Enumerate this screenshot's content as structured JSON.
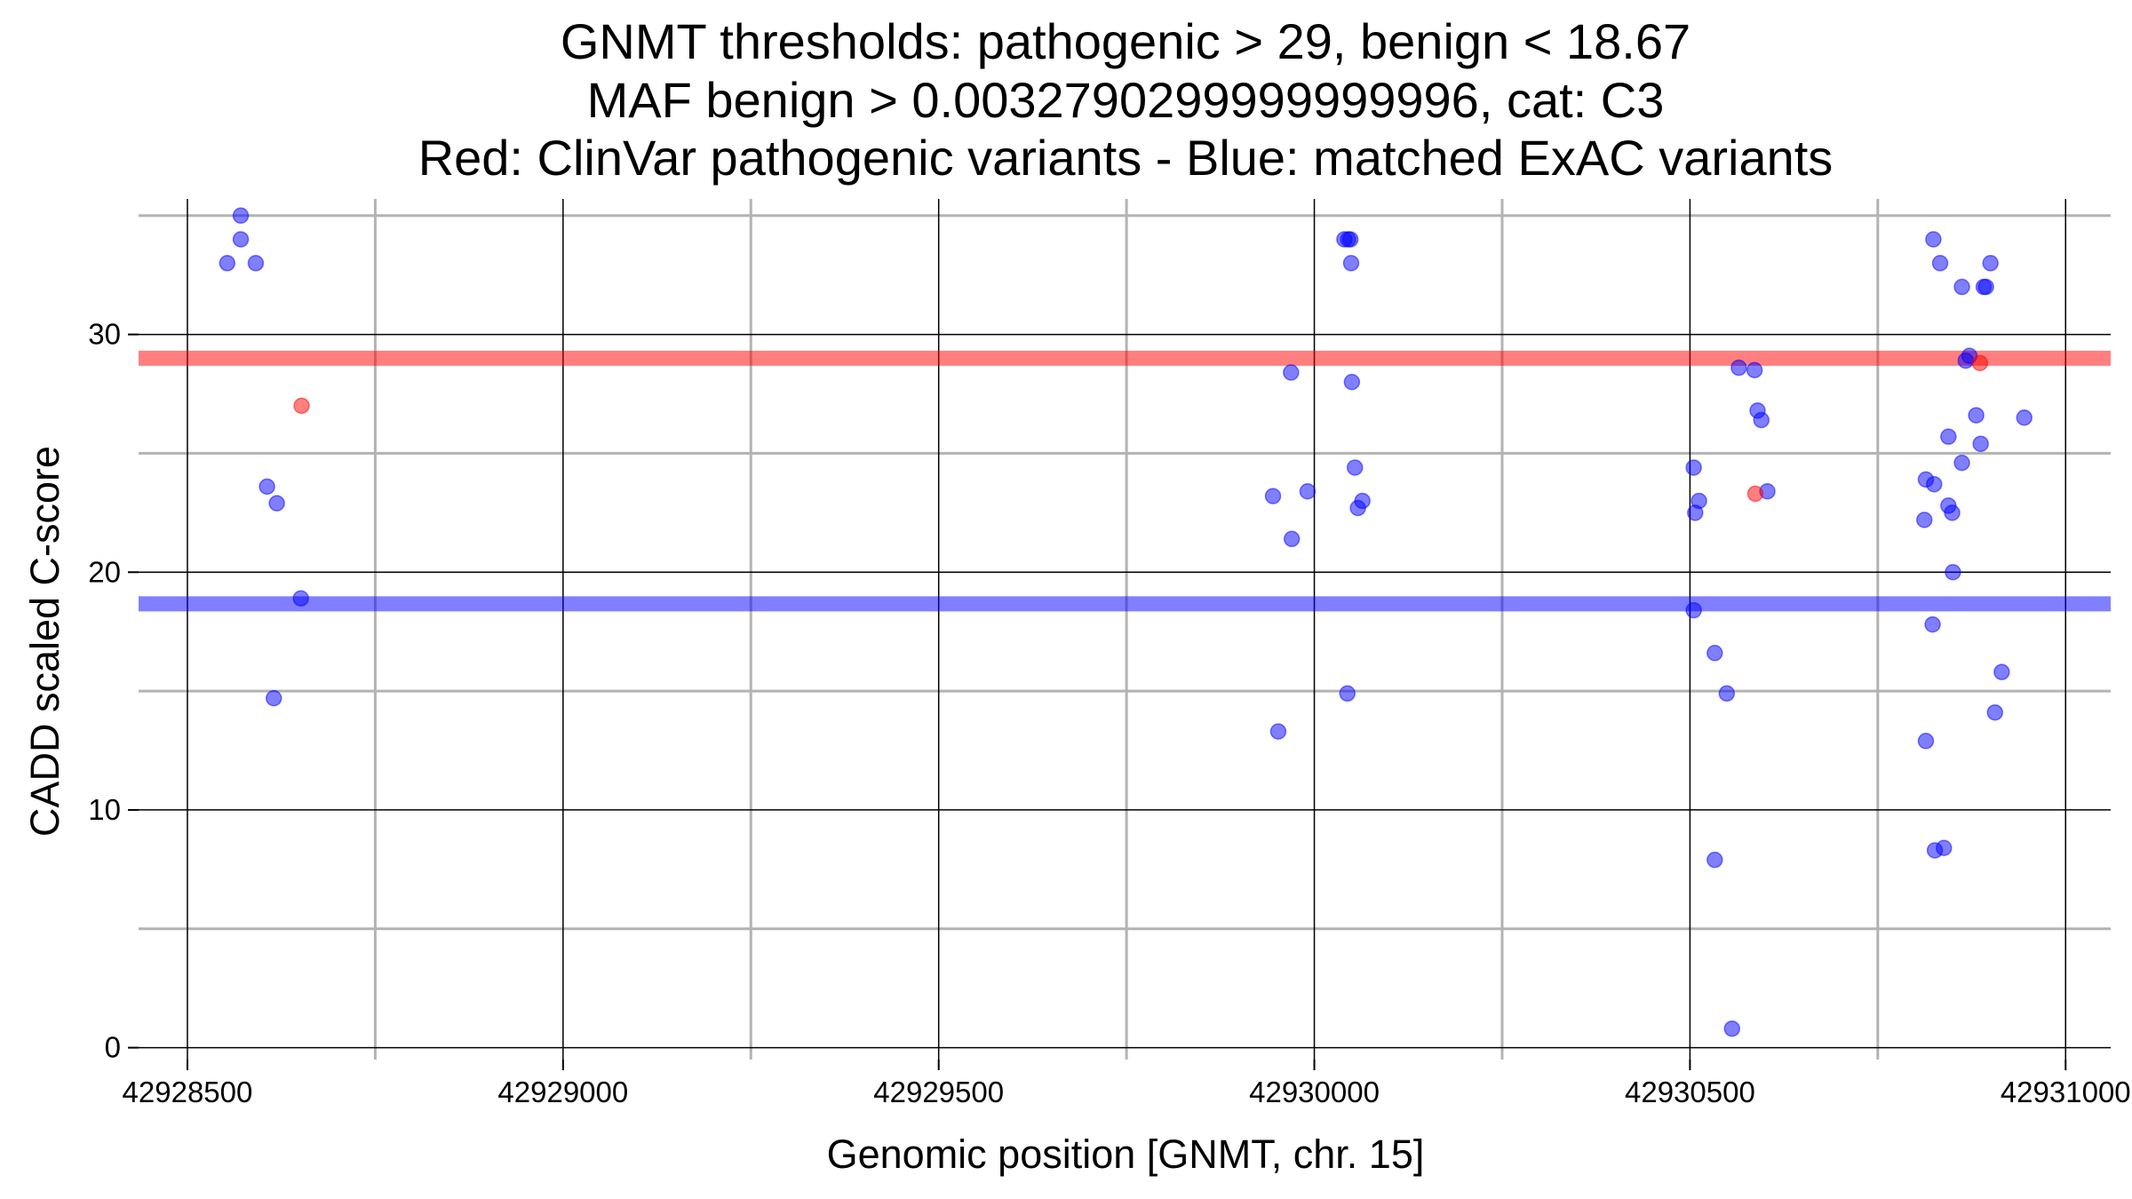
{
  "chart_data": {
    "type": "scatter",
    "title_lines": [
      "GNMT thresholds: pathogenic > 29, benign < 18.67",
      "MAF benign > 0.0032790299999999996, cat: C3",
      "Red: ClinVar pathogenic variants - Blue: matched ExAC variants"
    ],
    "xlabel": "Genomic position [GNMT, chr. 15]",
    "ylabel": "CADD scaled C-score",
    "xlim": [
      42928435,
      42931060
    ],
    "ylim": [
      -0.5,
      35.7
    ],
    "xticks": [
      42928500,
      42929000,
      42929500,
      42930000,
      42930500,
      42931000
    ],
    "xtick_labels": [
      "42928500",
      "42929000",
      "42929500",
      "42930000",
      "42930500",
      "42931000"
    ],
    "yticks": [
      0,
      10,
      20,
      30
    ],
    "ytick_labels": [
      "0",
      "10",
      "20",
      "30"
    ],
    "x_minor_grid": [
      42928750,
      42929250,
      42929750,
      42930250,
      42930750
    ],
    "y_minor_grid": [
      5,
      15,
      25,
      35
    ],
    "grid": true,
    "colors": {
      "pathogenic": "#ff0000",
      "benign": "#0000ff",
      "grid_major": "#000000",
      "grid_minor": "#b3b3b3"
    },
    "hlines": [
      {
        "name": "pathogenic threshold",
        "y": 29,
        "color": "#ff0000"
      },
      {
        "name": "benign threshold",
        "y": 18.67,
        "color": "#0000ff"
      }
    ],
    "series": [
      {
        "color": "#ff0000",
        "points": [
          [
            42928652,
            27.0
          ],
          [
            42930587,
            23.3
          ],
          [
            42930886,
            28.8
          ]
        ]
      },
      {
        "color": "#0000ff",
        "points": [
          [
            42928571,
            35.0
          ],
          [
            42928571,
            34.0
          ],
          [
            42928553,
            33.0
          ],
          [
            42928591,
            33.0
          ],
          [
            42928606,
            23.6
          ],
          [
            42928619,
            22.9
          ],
          [
            42928651,
            18.9
          ],
          [
            42928615,
            14.7
          ],
          [
            42930040,
            34.0
          ],
          [
            42930045,
            34.0
          ],
          [
            42930048,
            34.0
          ],
          [
            42930049,
            33.0
          ],
          [
            42929969,
            28.4
          ],
          [
            42930050,
            28.0
          ],
          [
            42930054,
            24.4
          ],
          [
            42929991,
            23.4
          ],
          [
            42929945,
            23.2
          ],
          [
            42930064,
            23.0
          ],
          [
            42930058,
            22.7
          ],
          [
            42929970,
            21.4
          ],
          [
            42930044,
            14.9
          ],
          [
            42929952,
            13.3
          ],
          [
            42930565,
            28.6
          ],
          [
            42930586,
            28.5
          ],
          [
            42930590,
            26.8
          ],
          [
            42930595,
            26.4
          ],
          [
            42930603,
            23.4
          ],
          [
            42930505,
            24.4
          ],
          [
            42930512,
            23.0
          ],
          [
            42930507,
            22.5
          ],
          [
            42930505,
            18.4
          ],
          [
            42930533,
            16.6
          ],
          [
            42930549,
            14.9
          ],
          [
            42930533,
            7.9
          ],
          [
            42930556,
            0.8
          ],
          [
            42930824,
            34.0
          ],
          [
            42930833,
            33.0
          ],
          [
            42930900,
            33.0
          ],
          [
            42930862,
            32.0
          ],
          [
            42930891,
            32.0
          ],
          [
            42930894,
            32.0
          ],
          [
            42930872,
            29.1
          ],
          [
            42930867,
            28.9
          ],
          [
            42930881,
            26.6
          ],
          [
            42930945,
            26.5
          ],
          [
            42930844,
            25.7
          ],
          [
            42930887,
            25.4
          ],
          [
            42930862,
            24.6
          ],
          [
            42930814,
            23.9
          ],
          [
            42930825,
            23.7
          ],
          [
            42930844,
            22.8
          ],
          [
            42930849,
            22.5
          ],
          [
            42930812,
            22.2
          ],
          [
            42930850,
            20.0
          ],
          [
            42930823,
            17.8
          ],
          [
            42930915,
            15.8
          ],
          [
            42930906,
            14.1
          ],
          [
            42930814,
            12.9
          ],
          [
            42930838,
            8.4
          ],
          [
            42930826,
            8.3
          ]
        ]
      }
    ]
  }
}
